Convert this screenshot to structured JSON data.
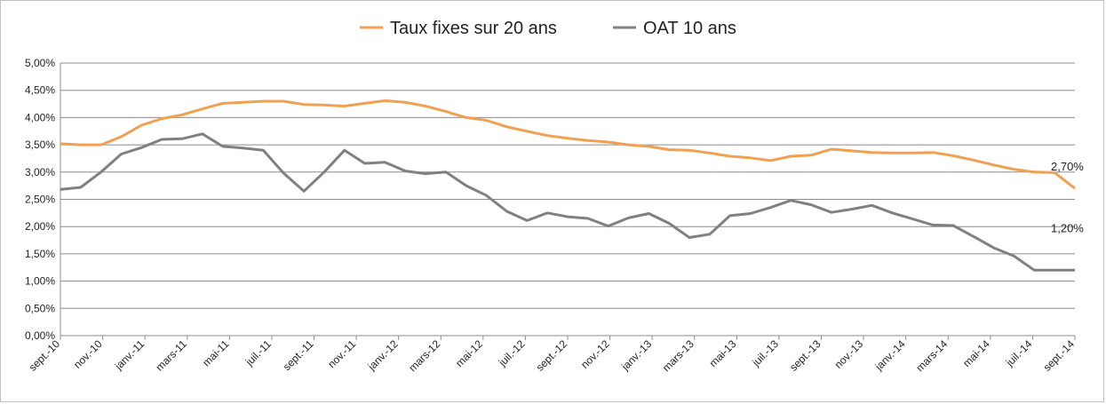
{
  "chart_data": {
    "type": "line",
    "legend_position": "top",
    "grid": true,
    "ylim": [
      0,
      5
    ],
    "y_ticks": [
      "0,00%",
      "0,50%",
      "1,00%",
      "1,50%",
      "2,00%",
      "2,50%",
      "3,00%",
      "3,50%",
      "4,00%",
      "4,50%",
      "5,00%"
    ],
    "x_ticks": [
      "sept.-10",
      "nov.-10",
      "janv.-11",
      "mars-11",
      "mai-11",
      "juil.-11",
      "sept.-11",
      "nov.-11",
      "janv.-12",
      "mars-12",
      "mai-12",
      "juil.-12",
      "sept.-12",
      "nov.-12",
      "janv.-13",
      "mars-13",
      "mai-13",
      "juil.-13",
      "sept.-13",
      "nov.-13",
      "janv.-14",
      "mars-14",
      "mai-14",
      "juil.-14",
      "sept.-14"
    ],
    "series": [
      {
        "name": "Taux fixes sur 20 ans",
        "color": "#f0a050",
        "values": [
          3.52,
          3.5,
          3.5,
          3.65,
          3.86,
          3.98,
          4.05,
          4.16,
          4.26,
          4.28,
          4.3,
          4.3,
          4.24,
          4.23,
          4.21,
          4.26,
          4.31,
          4.28,
          4.21,
          4.11,
          4.0,
          3.95,
          3.83,
          3.75,
          3.67,
          3.62,
          3.58,
          3.55,
          3.5,
          3.47,
          3.41,
          3.4,
          3.35,
          3.29,
          3.26,
          3.21,
          3.29,
          3.31,
          3.42,
          3.39,
          3.36,
          3.35,
          3.35,
          3.36,
          3.3,
          3.22,
          3.13,
          3.05,
          3.0,
          2.99,
          2.7
        ]
      },
      {
        "name": "OAT 10 ans",
        "color": "#808080",
        "values": [
          2.68,
          2.72,
          3.0,
          3.33,
          3.45,
          3.6,
          3.61,
          3.7,
          3.47,
          3.44,
          3.4,
          2.98,
          2.65,
          3.0,
          3.4,
          3.16,
          3.18,
          3.02,
          2.97,
          3.0,
          2.75,
          2.57,
          2.28,
          2.11,
          2.25,
          2.18,
          2.15,
          2.01,
          2.16,
          2.24,
          2.06,
          1.8,
          1.86,
          2.2,
          2.24,
          2.35,
          2.48,
          2.4,
          2.26,
          2.32,
          2.39,
          2.25,
          2.14,
          2.03,
          2.02,
          1.82,
          1.61,
          1.46,
          1.2,
          1.2,
          1.2
        ]
      }
    ],
    "annotations": [
      {
        "text": "2,70%",
        "series": 0
      },
      {
        "text": "1,20%",
        "series": 1
      }
    ]
  }
}
